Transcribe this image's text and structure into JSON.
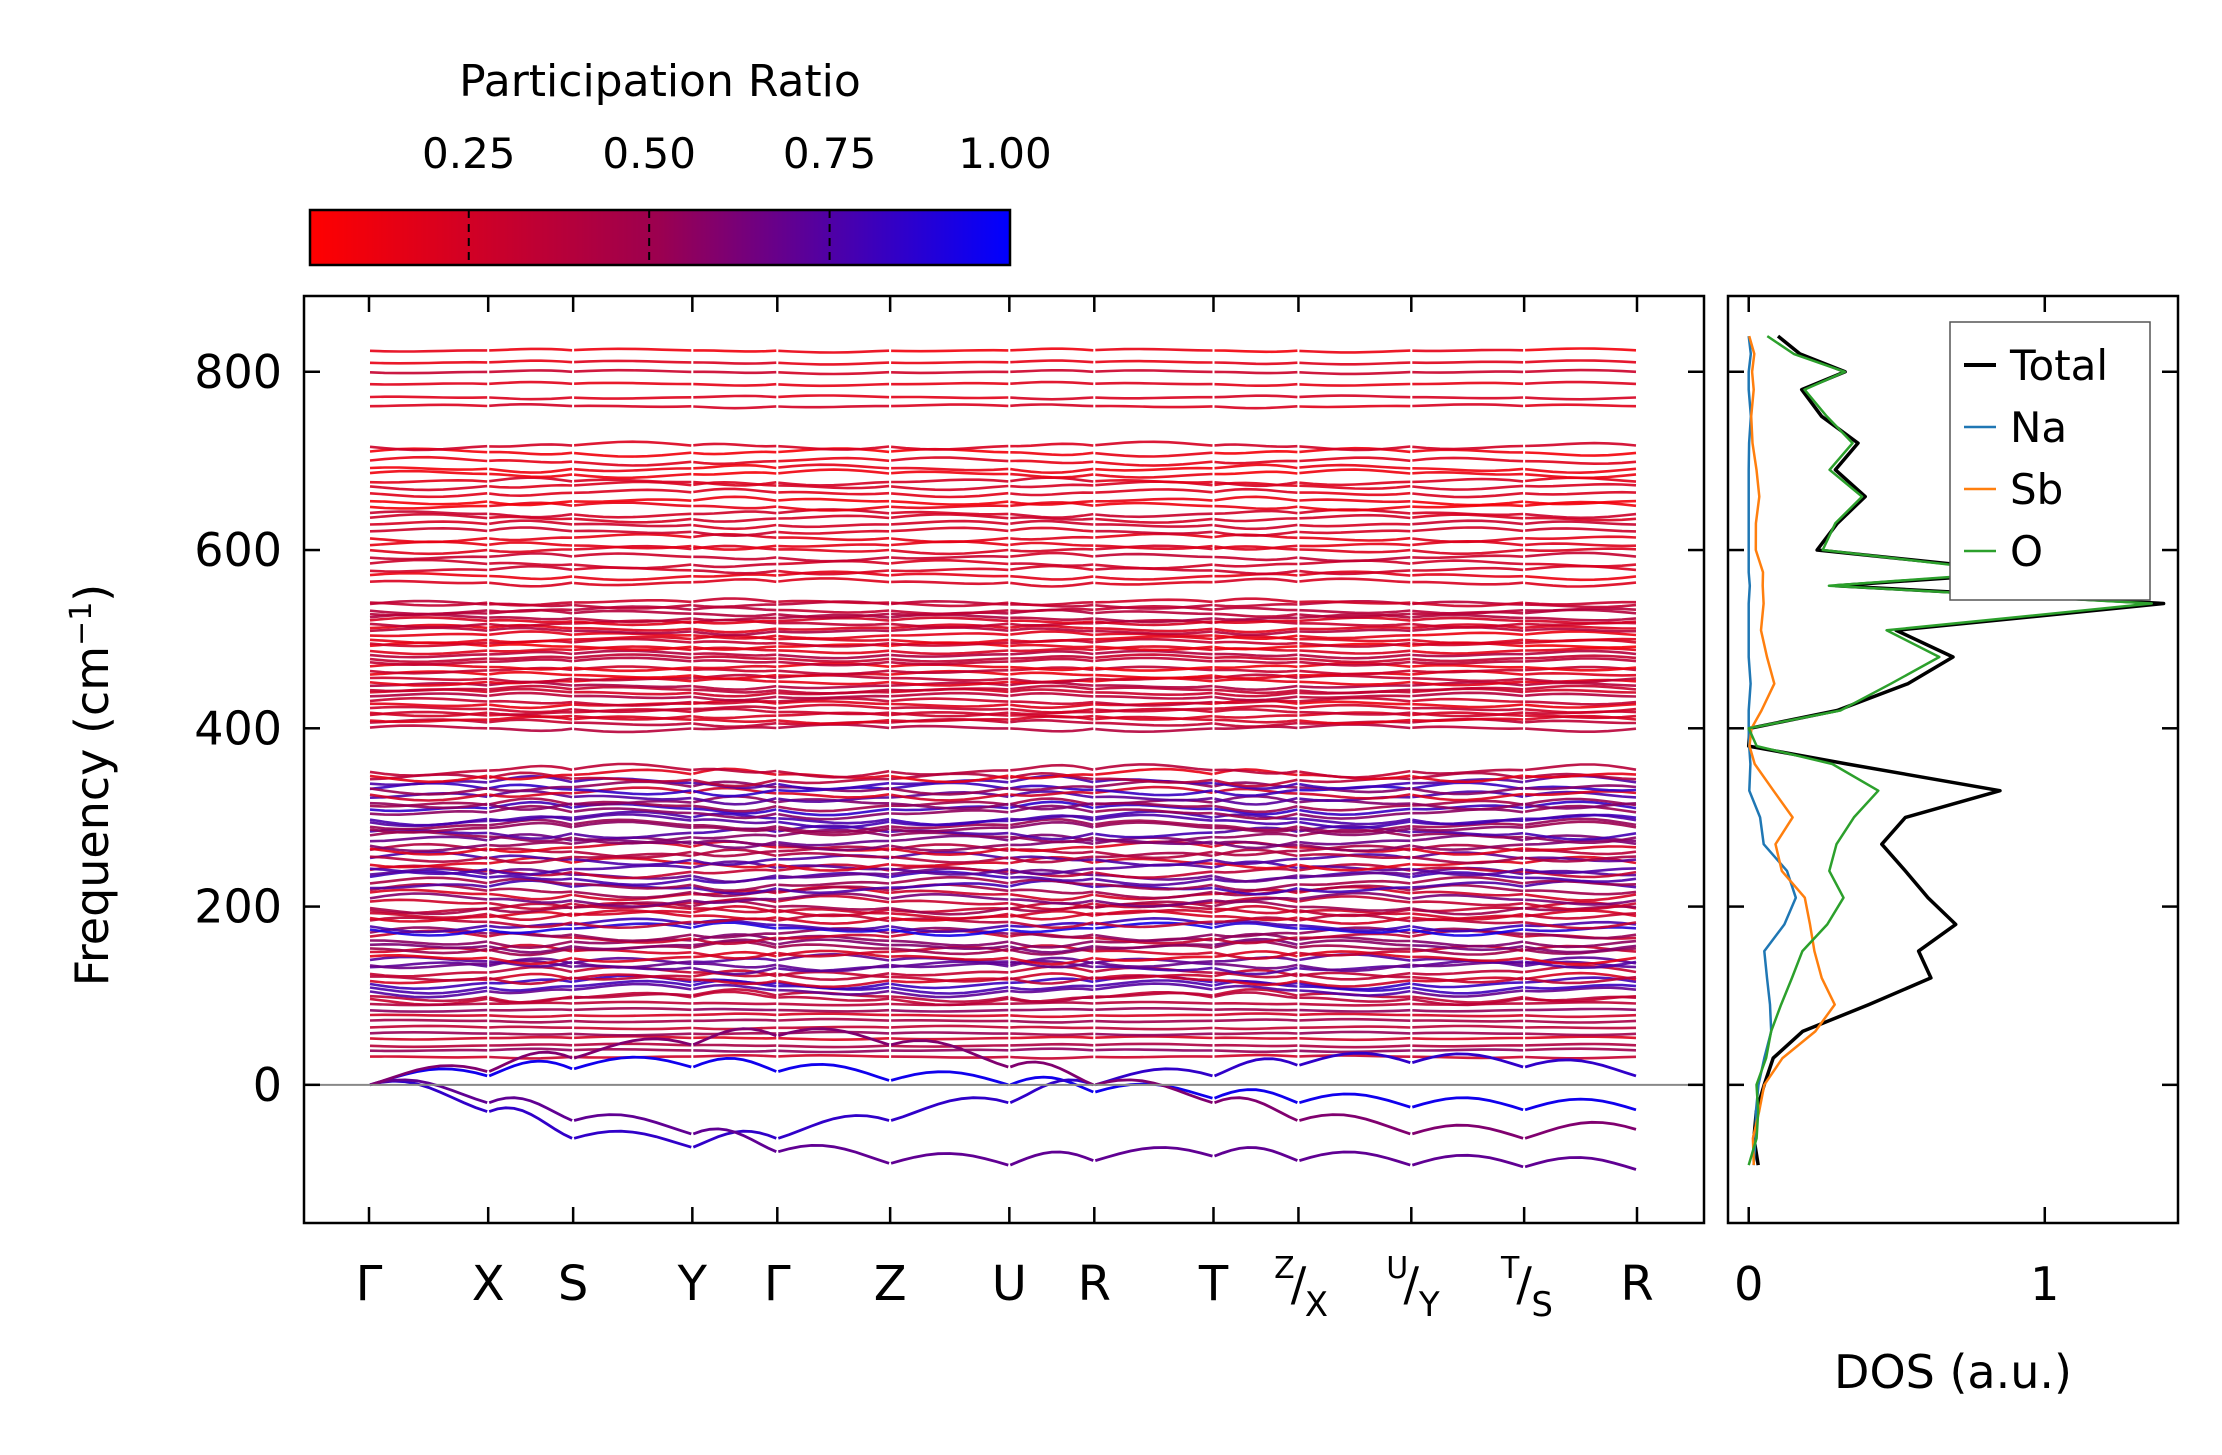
{
  "colorbar": {
    "label": "Participation Ratio",
    "tick_labels": [
      "0.25",
      "0.50",
      "0.75",
      "1.00"
    ],
    "tick_values": [
      0.25,
      0.5,
      0.75,
      1.0
    ],
    "range": [
      0.03,
      1.0
    ],
    "color_low": "#ff0000",
    "color_mid": "#9b0050",
    "color_high": "#0000ff"
  },
  "chart_data": [
    {
      "type": "line",
      "name": "phonon-dispersion",
      "ylabel": "Frequency (cm⁻¹)",
      "ylabel_main": "Frequency (cm",
      "ylabel_sup": "−1",
      "ylabel_close": ")",
      "ylim": [
        -155,
        885
      ],
      "yticks": [
        0,
        200,
        400,
        600,
        800
      ],
      "ytick_labels": [
        "0",
        "200",
        "400",
        "600",
        "800"
      ],
      "zero_line": 0,
      "kpath": [
        {
          "label": "Γ",
          "pos": 0.0
        },
        {
          "label": "X",
          "pos": 0.094
        },
        {
          "label": "S",
          "pos": 0.161
        },
        {
          "label": "Y",
          "pos": 0.255
        },
        {
          "label": "Γ",
          "pos": 0.322
        },
        {
          "label": "Z",
          "pos": 0.411
        },
        {
          "label": "U",
          "pos": 0.505
        },
        {
          "label": "R",
          "pos": 0.572
        },
        {
          "label": "T",
          "pos": 0.666
        },
        {
          "label": "Z|X",
          "pos": 0.733,
          "top": "Z",
          "bottom": "X"
        },
        {
          "label": "U|Y",
          "pos": 0.822,
          "top": "U",
          "bottom": "Y"
        },
        {
          "label": "T|S",
          "pos": 0.911,
          "top": "T",
          "bottom": "S"
        },
        {
          "label": "R",
          "pos": 1.0
        }
      ],
      "band_groups": [
        {
          "range": [
            400,
            545
          ],
          "count": 34,
          "pr_range": [
            0.12,
            0.4
          ]
        },
        {
          "range": [
            560,
            720
          ],
          "count": 22,
          "pr_range": [
            0.1,
            0.3
          ]
        },
        {
          "range": [
            755,
            830
          ],
          "count": 6,
          "pr_range": [
            0.12,
            0.3
          ]
        },
        {
          "range": [
            95,
            355
          ],
          "count": 60,
          "pr_range": [
            0.15,
            0.92
          ]
        },
        {
          "range": [
            30,
            95
          ],
          "count": 10,
          "pr_range": [
            0.1,
            0.55
          ]
        }
      ],
      "low_branches": [
        {
          "values": [
            0,
            10,
            18,
            20,
            15,
            5,
            0,
            -8,
            -15,
            -20,
            -25,
            -28,
            -28
          ],
          "pr": 0.95
        },
        {
          "values": [
            0,
            -30,
            -60,
            -70,
            -60,
            -40,
            -20,
            0,
            10,
            22,
            25,
            20,
            10
          ],
          "pr": 0.85
        },
        {
          "values": [
            0,
            -20,
            -40,
            -55,
            -75,
            -88,
            -90,
            -85,
            -80,
            -85,
            -90,
            -92,
            -95
          ],
          "pr": 0.7
        },
        {
          "values": [
            0,
            15,
            30,
            45,
            55,
            45,
            20,
            0,
            -20,
            -40,
            -55,
            -60,
            -50
          ],
          "pr": 0.6
        }
      ]
    },
    {
      "type": "line",
      "name": "density-of-states",
      "xlabel": "DOS (a.u.)",
      "xlim": [
        -0.07,
        1.45
      ],
      "xticks": [
        0,
        1
      ],
      "xtick_labels": [
        "0",
        "1"
      ],
      "ylim": [
        -155,
        885
      ],
      "freq": [
        -90,
        -60,
        -30,
        0,
        30,
        60,
        90,
        120,
        150,
        180,
        210,
        240,
        270,
        300,
        330,
        360,
        380,
        400,
        420,
        450,
        480,
        510,
        540,
        560,
        575,
        600,
        630,
        660,
        690,
        720,
        750,
        780,
        800,
        820,
        840
      ],
      "series": [
        {
          "name": "Total",
          "color": "#000000",
          "values": [
            0.02,
            0.04,
            0.05,
            0.06,
            0.1,
            0.2,
            0.4,
            0.6,
            0.55,
            0.7,
            0.62,
            0.55,
            0.45,
            0.55,
            0.85,
            0.35,
            0.02,
            0.0,
            0.3,
            0.55,
            0.7,
            0.5,
            1.38,
            0.3,
            0.95,
            0.25,
            0.3,
            0.38,
            0.3,
            0.35,
            0.25,
            0.2,
            0.32,
            0.15,
            0.08
          ]
        },
        {
          "name": "Na",
          "color": "#1f77b4",
          "values": [
            0.01,
            0.02,
            0.03,
            0.04,
            0.06,
            0.08,
            0.08,
            0.07,
            0.05,
            0.12,
            0.15,
            0.12,
            0.06,
            0.03,
            0.01,
            0.0,
            0.0,
            0.0,
            0.0,
            0.0,
            0.0,
            0.0,
            0.0,
            0.0,
            0.0,
            0.0,
            0.0,
            0.0,
            0.0,
            0.0,
            0.0,
            0.0,
            0.0,
            0.0,
            0.0
          ]
        },
        {
          "name": "Sb",
          "color": "#ff7f0e",
          "values": [
            0.01,
            0.02,
            0.03,
            0.05,
            0.12,
            0.22,
            0.3,
            0.25,
            0.22,
            0.2,
            0.18,
            0.12,
            0.1,
            0.15,
            0.08,
            0.02,
            0.0,
            0.01,
            0.05,
            0.08,
            0.06,
            0.04,
            0.05,
            0.04,
            0.04,
            0.02,
            0.03,
            0.03,
            0.02,
            0.02,
            0.01,
            0.01,
            0.01,
            0.01,
            0.0
          ]
        },
        {
          "name": "O",
          "color": "#2ca02c",
          "values": [
            0.0,
            0.01,
            0.01,
            0.02,
            0.05,
            0.08,
            0.12,
            0.15,
            0.2,
            0.25,
            0.3,
            0.25,
            0.3,
            0.35,
            0.45,
            0.3,
            0.02,
            0.0,
            0.3,
            0.5,
            0.65,
            0.48,
            1.35,
            0.28,
            0.92,
            0.25,
            0.28,
            0.36,
            0.28,
            0.33,
            0.24,
            0.19,
            0.3,
            0.14,
            0.08
          ]
        }
      ],
      "legend": {
        "placement": "top-right",
        "entries": [
          "Total",
          "Na",
          "Sb",
          "O"
        ]
      }
    }
  ]
}
